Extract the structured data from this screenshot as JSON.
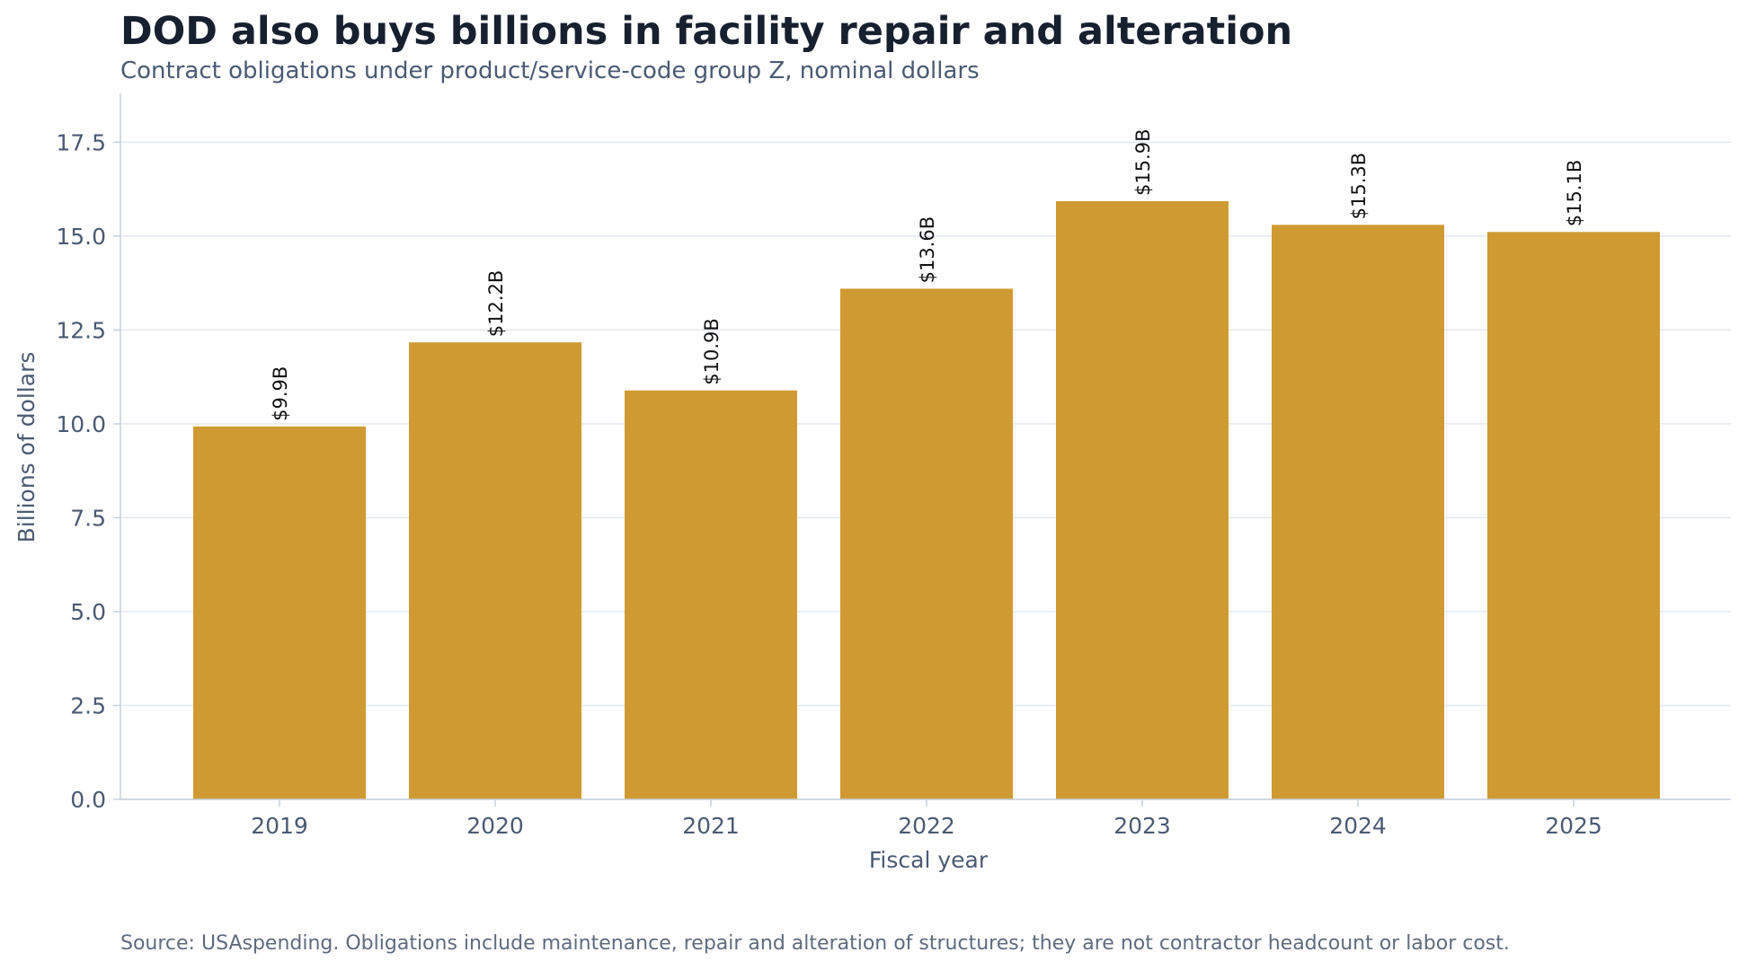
{
  "header": {
    "title": "DOD also buys billions in facility repair and alteration",
    "subtitle": "Contract obligations under product/service-code group Z, nominal dollars"
  },
  "footer": {
    "source": "Source: USAspending. Obligations include maintenance, repair and alteration of structures; they are not contractor headcount or labor cost."
  },
  "chart_data": {
    "type": "bar",
    "title": "DOD also buys billions in facility repair and alteration",
    "subtitle": "Contract obligations under product/service-code group Z, nominal dollars",
    "xlabel": "Fiscal year",
    "ylabel": "Billions of dollars",
    "categories": [
      "2019",
      "2020",
      "2021",
      "2022",
      "2023",
      "2024",
      "2025"
    ],
    "values": [
      9.93,
      12.17,
      10.89,
      13.6,
      15.93,
      15.3,
      15.11
    ],
    "data_labels": [
      "$9.9B",
      "$12.2B",
      "$10.9B",
      "$13.6B",
      "$15.9B",
      "$15.3B",
      "$15.1B"
    ],
    "ylim": [
      0,
      18.8
    ],
    "yticks": [
      0,
      2.5,
      5,
      7.5,
      10,
      12.5,
      15,
      17.5
    ],
    "ytick_labels": [
      "0.0",
      "2.5",
      "5.0",
      "7.5",
      "10.0",
      "12.5",
      "15.0",
      "17.5"
    ],
    "grid": true,
    "bar_color": "#d09a33",
    "grid_color": "#e3e8f0",
    "axis_color": "#c8d0dc"
  }
}
